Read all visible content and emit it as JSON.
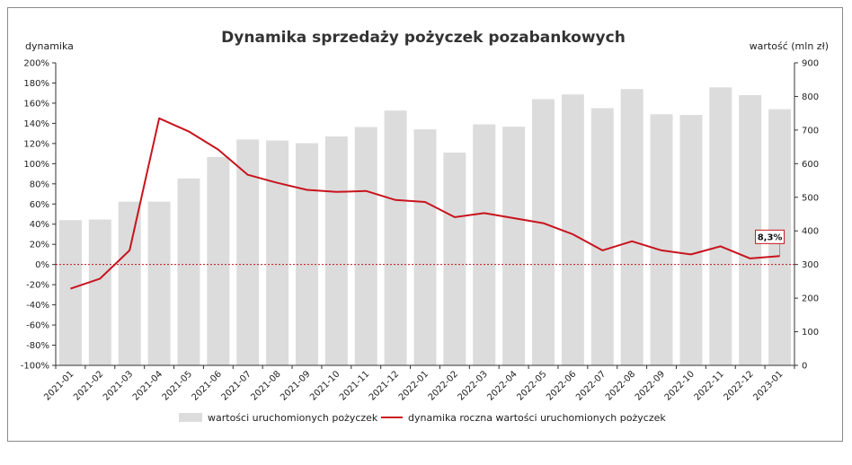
{
  "chart_data": {
    "type": "bar",
    "title": "Dynamika sprzedaży pożyczek pozabankowych",
    "y_left_label": "dynamika",
    "y_right_label": "wartość (mln zł)",
    "categories": [
      "2021-01",
      "2021-02",
      "2021-03",
      "2021-04",
      "2021-05",
      "2021-06",
      "2021-07",
      "2021-08",
      "2021-09",
      "2021-10",
      "2021-11",
      "2021-12",
      "2022-01",
      "2022-02",
      "2022-03",
      "2022-04",
      "2022-05",
      "2022-06",
      "2022-07",
      "2022-08",
      "2022-09",
      "2022-10",
      "2022-11",
      "2022-12",
      "2023-01"
    ],
    "y_left_ticks": [
      "200%",
      "180%",
      "160%",
      "140%",
      "120%",
      "100%",
      "80%",
      "60%",
      "40%",
      "20%",
      "0%",
      "-20%",
      "-40%",
      "-60%",
      "-80%",
      "-100%"
    ],
    "y_right_ticks": [
      "900",
      "800",
      "700",
      "600",
      "500",
      "400",
      "300",
      "200",
      "100",
      "0"
    ],
    "ylim_left": [
      -100,
      200
    ],
    "ylim_right": [
      0,
      900
    ],
    "series": [
      {
        "name": "wartości uruchomionych pożyczek",
        "type": "bar",
        "axis": "right",
        "color": "#dcdcdc",
        "values": [
          432,
          434,
          487,
          487,
          556,
          620,
          672,
          669,
          661,
          681,
          709,
          758,
          702,
          633,
          717,
          710,
          792,
          806,
          765,
          822,
          747,
          745,
          827,
          804,
          762
        ]
      },
      {
        "name": "dynamika roczna wartości uruchomionych pożyczek",
        "type": "line",
        "axis": "left",
        "color": "#c8141e",
        "values": [
          -24,
          -14,
          14,
          145,
          132,
          114,
          89,
          81,
          74,
          72,
          73,
          64,
          62,
          47,
          51,
          46,
          41,
          30,
          14,
          23,
          14,
          10,
          18,
          6,
          8.3
        ]
      }
    ],
    "annotation": "8,3%",
    "grid": false,
    "legend": "bottom-center"
  }
}
